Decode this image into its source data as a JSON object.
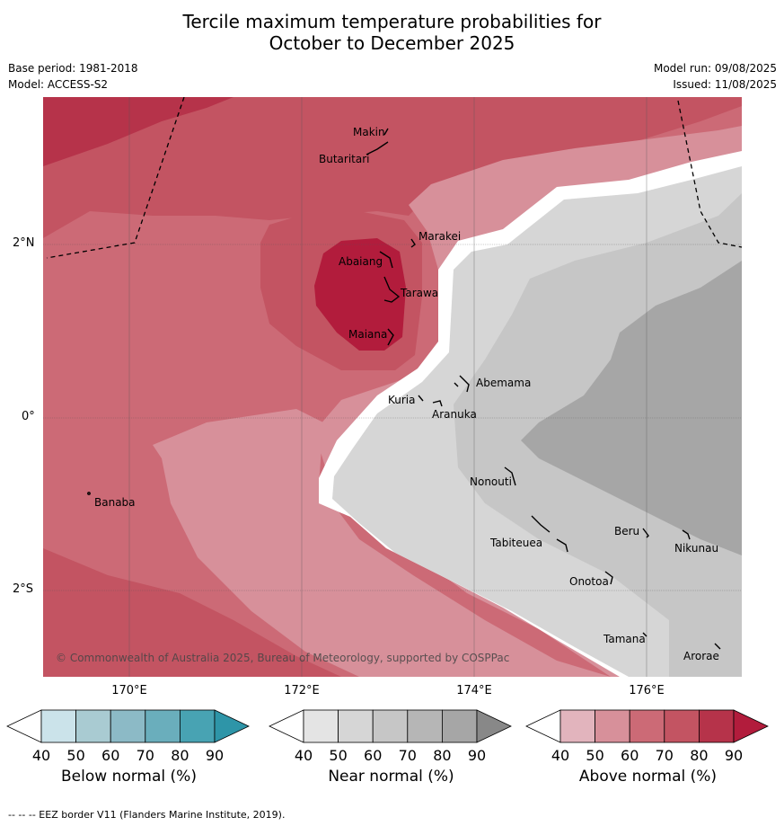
{
  "title_line1": "Tercile maximum temperature probabilities for",
  "title_line2": "October to December 2025",
  "base_period": "Base period: 1981-2018",
  "model": "Model: ACCESS-S2",
  "model_run": "Model run: 09/08/2025",
  "issued": "Issued: 11/08/2025",
  "longitudes": [
    "170°E",
    "172°E",
    "174°E",
    "176°E"
  ],
  "latitudes": [
    "2°N",
    "0°",
    "2°S"
  ],
  "islands": [
    "Makin",
    "Butaritari",
    "Marakei",
    "Abaiang",
    "Tarawa",
    "Maiana",
    "Abemama",
    "Kuria",
    "Aranuka",
    "Banaba",
    "Nonouti",
    "Tabiteuea",
    "Beru",
    "Nikunau",
    "Onotoa",
    "Tamana",
    "Arorae"
  ],
  "copyright": "© Commonwealth of Australia 2025, Bureau of Meteorology, supported by COSPPac",
  "colorbars": [
    {
      "title": "Below normal (%)",
      "ticks": [
        "40",
        "50",
        "60",
        "70",
        "80",
        "90"
      ],
      "colors": [
        "#ffffff",
        "#cbe3ea",
        "#a9cbd2",
        "#8cbac6",
        "#6aaebc",
        "#48a3b3",
        "#2e95a8"
      ]
    },
    {
      "title": "Near normal (%)",
      "ticks": [
        "40",
        "50",
        "60",
        "70",
        "80",
        "90"
      ],
      "colors": [
        "#ffffff",
        "#e4e4e4",
        "#d6d6d6",
        "#c6c6c6",
        "#b6b6b6",
        "#a6a6a6",
        "#888888"
      ]
    },
    {
      "title": "Above normal (%)",
      "ticks": [
        "40",
        "50",
        "60",
        "70",
        "80",
        "90"
      ],
      "colors": [
        "#ffffff",
        "#e2b4bd",
        "#d7909a",
        "#cc6a76",
        "#c35462",
        "#b6334a",
        "#b21c3c"
      ]
    }
  ],
  "eez_note": "-- -- -- EEZ border V11 (Flanders Marine Institute, 2019)."
}
